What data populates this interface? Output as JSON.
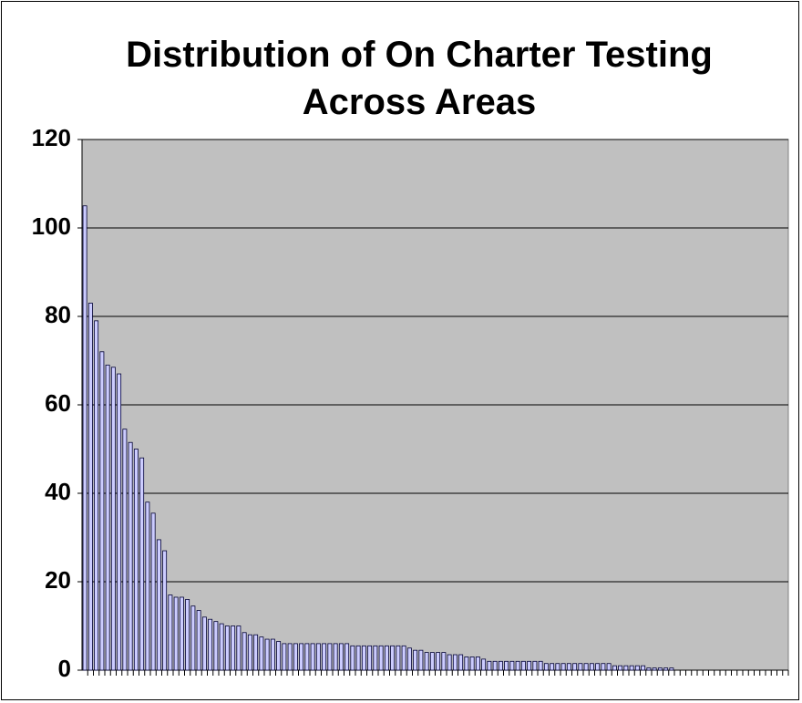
{
  "chart_data": {
    "type": "bar",
    "title": "Distribution of On Charter Testing Across Areas",
    "categories": [
      null,
      null,
      null,
      null,
      null,
      null,
      null,
      null,
      null,
      null,
      null,
      null,
      null,
      null,
      null,
      null,
      null,
      null,
      null,
      null,
      null,
      null,
      null,
      null,
      null,
      null,
      null,
      null,
      null,
      null,
      null,
      null,
      null,
      null,
      null,
      null,
      null,
      null,
      null,
      null,
      null,
      null,
      null,
      null,
      null,
      null,
      null,
      null,
      null,
      null,
      null,
      null,
      null,
      null,
      null,
      null,
      null,
      null,
      null,
      null,
      null,
      null,
      null,
      null,
      null,
      null,
      null,
      null,
      null,
      null,
      null,
      null,
      null,
      null,
      null,
      null,
      null,
      null,
      null,
      null,
      null,
      null,
      null,
      null,
      null,
      null,
      null,
      null,
      null,
      null,
      null,
      null,
      null,
      null,
      null,
      null,
      null,
      null,
      null,
      null,
      null,
      null,
      null,
      null,
      null,
      null,
      null,
      null,
      null,
      null,
      null,
      null,
      null,
      null,
      null,
      null,
      null,
      null,
      null,
      null,
      null,
      null,
      null,
      null
    ],
    "values": [
      105,
      83,
      79,
      72,
      69,
      68.5,
      67,
      54.5,
      51.5,
      50,
      48,
      38,
      35.5,
      29.5,
      27,
      17,
      16.5,
      16.5,
      16,
      14.5,
      13.5,
      12,
      11.5,
      11,
      10.5,
      10,
      10,
      10,
      8.5,
      8,
      8,
      7.5,
      7,
      7,
      6.5,
      6,
      6,
      6,
      6,
      6,
      6,
      6,
      6,
      6,
      6,
      6,
      6,
      5.5,
      5.5,
      5.5,
      5.5,
      5.5,
      5.5,
      5.5,
      5.5,
      5.5,
      5.5,
      5,
      4.5,
      4.5,
      4,
      4,
      4,
      4,
      3.5,
      3.5,
      3.5,
      3,
      3,
      3,
      2.5,
      2,
      2,
      2,
      2,
      2,
      2,
      2,
      2,
      2,
      2,
      1.5,
      1.5,
      1.5,
      1.5,
      1.5,
      1.5,
      1.5,
      1.5,
      1.5,
      1.5,
      1.5,
      1.5,
      1,
      1,
      1,
      1,
      1,
      1,
      0.5,
      0.5,
      0.5,
      0.5,
      0.5,
      0,
      0,
      0,
      0,
      0,
      0,
      0,
      0,
      0,
      0,
      0,
      0,
      0,
      0,
      0,
      0,
      0,
      0,
      0,
      0
    ],
    "color": "#ccccff",
    "ylim": [
      0,
      120
    ],
    "yticks": [
      0,
      20,
      40,
      60,
      80,
      100,
      120
    ],
    "grid": true
  }
}
